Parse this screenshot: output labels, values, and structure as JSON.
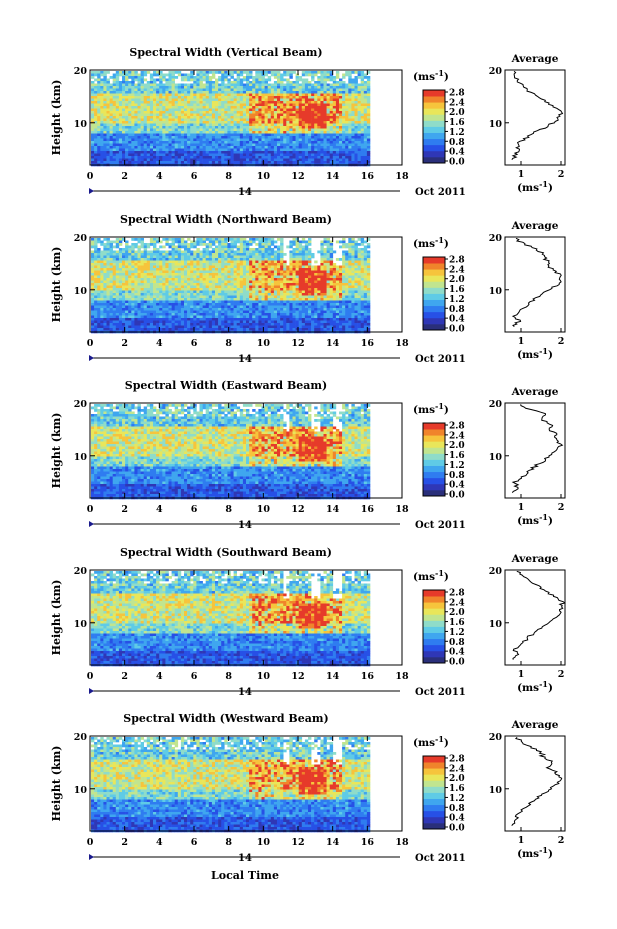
{
  "figure": {
    "xlabel": "Local Time",
    "ylabel": "Height (km)",
    "date_suffix": "Oct 2011",
    "date_day": "14",
    "unit_label": "(ms",
    "unit_exp": "-1",
    "unit_close": ")",
    "average_title": "Average",
    "colors": {
      "palette": [
        "#2a2f7a",
        "#2f37b6",
        "#2750e6",
        "#2f7cf0",
        "#3fa6ef",
        "#5fcbe6",
        "#8fdcc9",
        "#c1e58f",
        "#e9e65a",
        "#f6c43c",
        "#f0842b",
        "#e63a2a"
      ]
    }
  },
  "chart_data": [
    {
      "type": "heatmap",
      "title": "Spectral Width (Vertical Beam)",
      "x_ticks": [
        "0",
        "2",
        "4",
        "6",
        "8",
        "10",
        "12",
        "14",
        "16",
        "18"
      ],
      "xlim": [
        0,
        18
      ],
      "data_xlim": [
        0,
        16
      ],
      "y_ticks": [
        "20",
        "10"
      ],
      "ylim": [
        2,
        20
      ],
      "colorbar_ticks": [
        "2.8",
        "2.4",
        "2.0",
        "1.6",
        "1.2",
        "0.8",
        "0.4",
        "0.0"
      ],
      "colorbar_range": [
        0.0,
        2.8
      ],
      "average_profile": {
        "x_ticks": [
          "1",
          "2"
        ],
        "xlim": [
          0.6,
          2.1
        ],
        "y_ticks": [
          "20",
          "10"
        ],
        "heights": [
          3,
          4,
          5,
          6,
          7,
          8,
          9,
          10,
          11,
          12,
          13,
          14,
          15,
          16,
          17,
          18,
          19,
          20
        ],
        "values": [
          0.8,
          0.85,
          0.95,
          0.9,
          1.1,
          1.3,
          1.6,
          1.8,
          1.95,
          2.05,
          1.85,
          1.6,
          1.45,
          1.2,
          1.05,
          0.9,
          0.85,
          0.8
        ]
      }
    },
    {
      "type": "heatmap",
      "title": "Spectral Width (Northward Beam)",
      "x_ticks": [
        "0",
        "2",
        "4",
        "6",
        "8",
        "10",
        "12",
        "14",
        "16",
        "18"
      ],
      "xlim": [
        0,
        18
      ],
      "data_xlim": [
        0,
        16
      ],
      "y_ticks": [
        "20",
        "10"
      ],
      "ylim": [
        2,
        20
      ],
      "colorbar_ticks": [
        "2.8",
        "2.4",
        "2.0",
        "1.6",
        "1.2",
        "0.8",
        "0.4",
        "0.0"
      ],
      "colorbar_range": [
        0.0,
        2.8
      ],
      "average_profile": {
        "x_ticks": [
          "1",
          "2"
        ],
        "xlim": [
          0.6,
          2.1
        ],
        "y_ticks": [
          "20",
          "10"
        ],
        "heights": [
          3,
          4,
          5,
          6,
          7,
          8,
          9,
          10,
          11,
          12,
          13,
          14,
          15,
          16,
          17,
          18,
          19,
          20
        ],
        "values": [
          0.8,
          0.95,
          0.85,
          1.0,
          1.15,
          1.3,
          1.5,
          1.7,
          1.9,
          2.0,
          1.95,
          1.75,
          1.7,
          1.6,
          1.5,
          1.3,
          1.0,
          0.8
        ]
      }
    },
    {
      "type": "heatmap",
      "title": "Spectral Width (Eastward Beam)",
      "x_ticks": [
        "0",
        "2",
        "4",
        "6",
        "8",
        "10",
        "12",
        "14",
        "16",
        "18"
      ],
      "xlim": [
        0,
        18
      ],
      "data_xlim": [
        0,
        16
      ],
      "y_ticks": [
        "20",
        "10"
      ],
      "ylim": [
        2,
        20
      ],
      "colorbar_ticks": [
        "2.8",
        "2.4",
        "2.0",
        "1.6",
        "1.2",
        "0.8",
        "0.4",
        "0.0"
      ],
      "colorbar_range": [
        0.0,
        2.8
      ],
      "average_profile": {
        "x_ticks": [
          "1",
          "2"
        ],
        "xlim": [
          0.6,
          2.1
        ],
        "y_ticks": [
          "20",
          "10"
        ],
        "heights": [
          3,
          4,
          5,
          6,
          7,
          8,
          9,
          10,
          11,
          12,
          13,
          14,
          15,
          16,
          17,
          18,
          19,
          20
        ],
        "values": [
          0.8,
          0.9,
          0.85,
          1.05,
          1.2,
          1.35,
          1.55,
          1.75,
          1.9,
          2.0,
          1.85,
          1.9,
          1.7,
          1.75,
          1.5,
          1.6,
          1.1,
          0.9
        ]
      }
    },
    {
      "type": "heatmap",
      "title": "Spectral Width (Southward Beam)",
      "x_ticks": [
        "0",
        "2",
        "4",
        "6",
        "8",
        "10",
        "12",
        "14",
        "16",
        "18"
      ],
      "xlim": [
        0,
        18
      ],
      "data_xlim": [
        0,
        16
      ],
      "y_ticks": [
        "20",
        "10"
      ],
      "ylim": [
        2,
        20
      ],
      "colorbar_ticks": [
        "2.8",
        "2.4",
        "2.0",
        "1.6",
        "1.2",
        "0.8",
        "0.4",
        "0.0"
      ],
      "colorbar_range": [
        0.0,
        2.8
      ],
      "average_profile": {
        "x_ticks": [
          "1",
          "2"
        ],
        "xlim": [
          0.6,
          2.1
        ],
        "y_ticks": [
          "20",
          "10"
        ],
        "heights": [
          3,
          4,
          5,
          6,
          7,
          8,
          9,
          10,
          11,
          12,
          13,
          14,
          15,
          16,
          17,
          18,
          19,
          20
        ],
        "values": [
          0.8,
          0.9,
          0.85,
          1.0,
          1.15,
          1.3,
          1.5,
          1.7,
          1.85,
          1.95,
          2.0,
          2.05,
          1.85,
          1.6,
          1.4,
          1.2,
          1.0,
          0.85
        ]
      }
    },
    {
      "type": "heatmap",
      "title": "Spectral Width (Westward Beam)",
      "x_ticks": [
        "0",
        "2",
        "4",
        "6",
        "8",
        "10",
        "12",
        "14",
        "16",
        "18"
      ],
      "xlim": [
        0,
        18
      ],
      "data_xlim": [
        0,
        16
      ],
      "y_ticks": [
        "20",
        "10"
      ],
      "ylim": [
        2,
        20
      ],
      "colorbar_ticks": [
        "2.8",
        "2.4",
        "2.0",
        "1.6",
        "1.2",
        "0.8",
        "0.4",
        "0.0"
      ],
      "colorbar_range": [
        0.0,
        2.8
      ],
      "average_profile": {
        "x_ticks": [
          "1",
          "2"
        ],
        "xlim": [
          0.6,
          2.1
        ],
        "y_ticks": [
          "20",
          "10"
        ],
        "heights": [
          3,
          4,
          5,
          6,
          7,
          8,
          9,
          10,
          11,
          12,
          13,
          14,
          15,
          16,
          17,
          18,
          19,
          20
        ],
        "values": [
          0.8,
          0.9,
          0.85,
          1.05,
          1.2,
          1.35,
          1.55,
          1.75,
          1.9,
          2.0,
          1.9,
          1.7,
          1.8,
          1.55,
          1.5,
          1.2,
          1.0,
          0.85
        ]
      }
    }
  ]
}
